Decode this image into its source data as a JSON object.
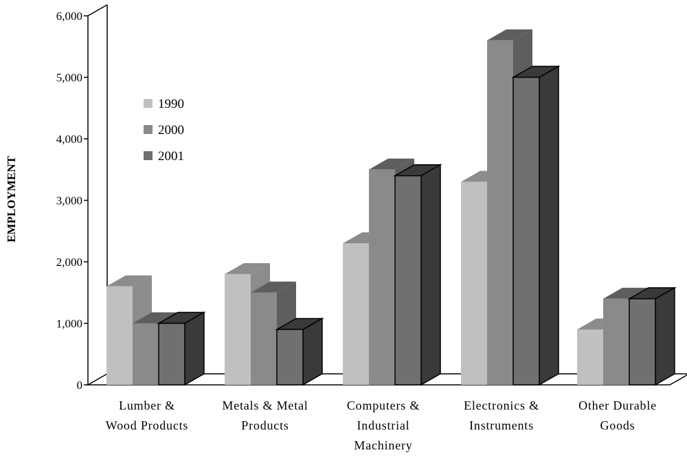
{
  "chart_data": {
    "type": "bar",
    "title": "",
    "xlabel": "",
    "ylabel": "EMPLOYMENT",
    "ylim": [
      0,
      6000
    ],
    "yticks": [
      "0",
      "1,000",
      "2,000",
      "3,000",
      "4,000",
      "5,000",
      "6,000"
    ],
    "categories": [
      [
        "Lumber &",
        "Wood Products"
      ],
      [
        "Metals & Metal",
        "Products"
      ],
      [
        "Computers &",
        "Industrial",
        "Machinery"
      ],
      [
        "Electronics &",
        "Instruments"
      ],
      [
        "Other Durable",
        "Goods"
      ]
    ],
    "series": [
      {
        "name": "1990",
        "values": [
          1600,
          1800,
          2300,
          3300,
          900
        ],
        "color": "#c0c0c0",
        "shade": "#8c8c8c"
      },
      {
        "name": "2000",
        "values": [
          1000,
          1500,
          3500,
          5600,
          1400
        ],
        "color": "#8a8a8a",
        "shade": "#5e5e5e"
      },
      {
        "name": "2001",
        "values": [
          1000,
          900,
          3400,
          5000,
          1400
        ],
        "color": "#707070",
        "shade": "#3a3a3a"
      }
    ],
    "legend_position": "upper-left",
    "grid": false,
    "style": "3d-clustered-bar"
  }
}
